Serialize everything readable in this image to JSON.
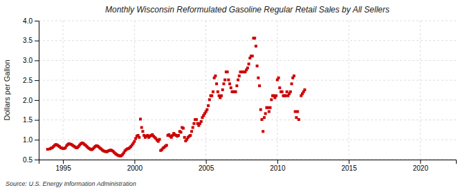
{
  "chart_data": {
    "type": "scatter",
    "title": "Monthly Wisconsin Reformulated Gasoline Regular Retail Sales by All Sellers",
    "ylabel": "Dollars per Gallon",
    "annotations": [
      "Source: U.S. Energy Information Administration"
    ],
    "color": "#cc0000",
    "marker": "square",
    "grid": true,
    "xlim": [
      1993.3,
      2022.5
    ],
    "ylim": [
      0.5,
      4.0
    ],
    "xticks": [
      1995,
      2000,
      2005,
      2010,
      2015,
      2020
    ],
    "yticks": [
      0.5,
      {
        "value": 1.0,
        "label": "1.0"
      },
      1.5,
      {
        "value": 2.0,
        "label": "2.0"
      },
      2.5,
      {
        "value": 3.0,
        "label": "3.0"
      },
      3.5,
      {
        "value": 4.0,
        "label": "4.0"
      }
    ],
    "x": [
      1993.917,
      1994.083,
      1994.167,
      1994.25,
      1994.333,
      1994.417,
      1994.5,
      1994.583,
      1994.667,
      1994.75,
      1994.833,
      1994.917,
      1995.0,
      1995.083,
      1995.167,
      1995.25,
      1995.333,
      1995.417,
      1995.5,
      1995.583,
      1995.667,
      1995.75,
      1995.833,
      1995.917,
      1996.0,
      1996.083,
      1996.167,
      1996.25,
      1996.333,
      1996.417,
      1996.5,
      1996.583,
      1996.667,
      1996.75,
      1996.833,
      1996.917,
      1997.0,
      1997.083,
      1997.167,
      1997.25,
      1997.333,
      1997.417,
      1997.5,
      1997.583,
      1997.667,
      1997.75,
      1997.833,
      1997.917,
      1998.0,
      1998.083,
      1998.167,
      1998.25,
      1998.333,
      1998.417,
      1998.5,
      1998.583,
      1998.667,
      1998.75,
      1998.833,
      1998.917,
      1999.0,
      1999.083,
      1999.167,
      1999.25,
      1999.333,
      1999.417,
      1999.5,
      1999.583,
      1999.667,
      1999.75,
      1999.833,
      1999.917,
      2000.0,
      2000.083,
      2000.167,
      2000.25,
      2000.333,
      2000.417,
      2000.5,
      2000.583,
      2000.667,
      2000.75,
      2000.833,
      2000.917,
      2001.0,
      2001.083,
      2001.167,
      2001.25,
      2001.333,
      2001.417,
      2001.5,
      2001.583,
      2001.667,
      2001.75,
      2001.833,
      2001.917,
      2002.0,
      2002.083,
      2002.167,
      2002.25,
      2002.333,
      2002.417,
      2002.5,
      2002.583,
      2002.667,
      2002.75,
      2002.833,
      2002.917,
      2003.0,
      2003.083,
      2003.167,
      2003.25,
      2003.333,
      2003.417,
      2003.5,
      2003.583,
      2003.667,
      2003.75,
      2003.833,
      2003.917,
      2004.0,
      2004.083,
      2004.167,
      2004.25,
      2004.333,
      2004.417,
      2004.5,
      2004.583,
      2004.667,
      2004.75,
      2004.833,
      2004.917,
      2005.0,
      2005.083,
      2005.167,
      2005.25,
      2005.333,
      2005.417,
      2005.5,
      2005.583,
      2005.667,
      2005.75,
      2005.833,
      2005.917,
      2006.0,
      2006.083,
      2006.167,
      2006.25,
      2006.333,
      2006.417,
      2006.5,
      2006.583,
      2006.667,
      2006.75,
      2006.833,
      2006.917,
      2007.0,
      2007.083,
      2007.167,
      2007.25,
      2007.333,
      2007.417,
      2007.5,
      2007.583,
      2007.667,
      2007.75,
      2007.833,
      2007.917,
      2008.0,
      2008.083,
      2008.167,
      2008.25,
      2008.333,
      2008.417,
      2008.5,
      2008.583,
      2008.667,
      2008.75,
      2008.833,
      2008.917,
      2009.0,
      2009.083,
      2009.167,
      2009.25,
      2009.333,
      2009.417,
      2009.5,
      2009.583,
      2009.667,
      2009.75,
      2009.833,
      2009.917,
      2010.0,
      2010.083,
      2010.167,
      2010.25,
      2010.333,
      2010.417,
      2010.5,
      2010.583,
      2010.667,
      2010.75,
      2010.833,
      2010.917,
      2011.0,
      2011.083,
      2011.167,
      2011.25,
      2011.333,
      2011.417,
      2011.5,
      2011.667,
      2011.75,
      2011.833,
      2011.917
    ],
    "values": [
      0.76,
      0.77,
      0.79,
      0.8,
      0.83,
      0.86,
      0.88,
      0.87,
      0.85,
      0.83,
      0.8,
      0.79,
      0.78,
      0.78,
      0.8,
      0.85,
      0.88,
      0.9,
      0.89,
      0.88,
      0.86,
      0.84,
      0.82,
      0.8,
      0.8,
      0.83,
      0.87,
      0.9,
      0.92,
      0.91,
      0.88,
      0.86,
      0.83,
      0.8,
      0.78,
      0.76,
      0.75,
      0.77,
      0.8,
      0.83,
      0.85,
      0.84,
      0.82,
      0.79,
      0.77,
      0.74,
      0.72,
      0.71,
      0.7,
      0.7,
      0.72,
      0.73,
      0.74,
      0.73,
      0.71,
      0.68,
      0.65,
      0.63,
      0.61,
      0.6,
      0.59,
      0.6,
      0.63,
      0.67,
      0.72,
      0.75,
      0.77,
      0.78,
      0.8,
      0.83,
      0.87,
      0.91,
      0.96,
      1.03,
      1.09,
      1.11,
      1.06,
      1.52,
      1.31,
      1.21,
      1.11,
      1.06,
      1.09,
      1.11,
      1.06,
      1.09,
      1.11,
      1.13,
      1.09,
      1.06,
      1.03,
      0.99,
      0.96,
      1.01,
      0.73,
      0.75,
      0.79,
      0.81,
      0.84,
      0.86,
      1.11,
      1.13,
      1.09,
      1.06,
      1.11,
      1.16,
      1.13,
      1.11,
      1.09,
      1.11,
      1.21,
      1.19,
      1.31,
      1.29,
      1.06,
      0.97,
      1.01,
      1.06,
      1.09,
      1.11,
      1.21,
      1.31,
      1.41,
      1.51,
      1.51,
      1.41,
      1.36,
      1.41,
      1.46,
      1.56,
      1.61,
      1.66,
      1.71,
      1.76,
      1.86,
      2.01,
      2.11,
      2.11,
      2.21,
      2.56,
      2.61,
      2.41,
      2.21,
      2.11,
      2.06,
      2.11,
      2.26,
      2.41,
      2.51,
      2.71,
      2.71,
      2.51,
      2.41,
      2.31,
      2.21,
      2.21,
      2.21,
      2.21,
      2.36,
      2.51,
      2.61,
      2.71,
      2.71,
      2.71,
      2.71,
      2.71,
      2.76,
      2.81,
      2.91,
      3.06,
      3.11,
      3.11,
      3.56,
      3.56,
      3.36,
      2.86,
      2.56,
      2.36,
      1.76,
      1.51,
      1.21,
      1.56,
      1.66,
      1.81,
      1.81,
      1.71,
      1.81,
      2.01,
      2.11,
      2.11,
      2.06,
      2.11,
      2.51,
      2.56,
      2.31,
      2.21,
      2.21,
      2.11,
      2.11,
      2.11,
      2.21,
      2.11,
      2.16,
      2.21,
      2.41,
      2.56,
      2.61,
      1.71,
      1.56,
      1.71,
      1.51,
      2.11,
      2.16,
      2.21,
      2.26
    ]
  }
}
